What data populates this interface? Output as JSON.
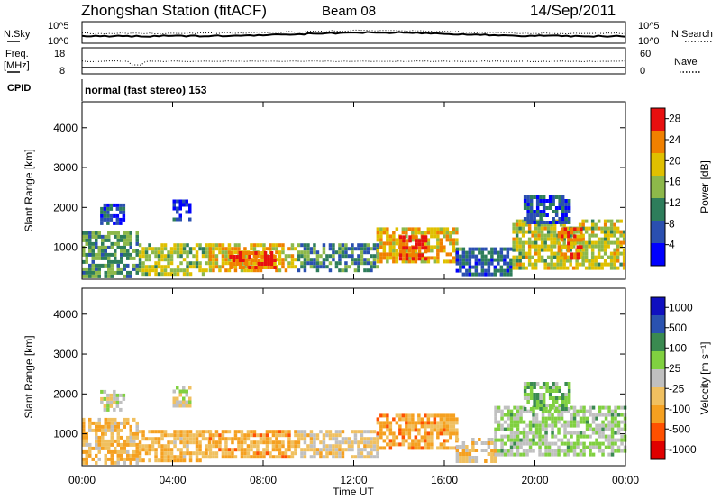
{
  "header": {
    "station": "Zhongshan Station (fitACF)",
    "beam": "Beam 08",
    "date": "14/Sep/2011"
  },
  "noise_panel": {
    "left_label": "N.Sky",
    "right_label": "N.Search",
    "left_ticks": [
      "10^5",
      "10^0"
    ],
    "right_ticks": [
      "10^5",
      "10^0"
    ]
  },
  "freq_panel": {
    "left_label_top": "Freq.",
    "left_label_bottom": "[MHz]",
    "right_label": "Nave",
    "left_ticks": [
      "18",
      "8"
    ],
    "right_ticks": [
      "60",
      "0"
    ]
  },
  "cpid": {
    "label": "CPID",
    "text": "normal (fast stereo) 153"
  },
  "chart_data": [
    {
      "type": "heatmap",
      "title": "",
      "ylabel": "Slant Range [km]",
      "ylim": [
        200,
        4650
      ],
      "y_ticks": [
        "1000",
        "2000",
        "3000",
        "4000"
      ],
      "x_ticks": [
        "00:00",
        "04:00",
        "08:00",
        "12:00",
        "16:00",
        "20:00",
        "00:00"
      ],
      "colorbar": {
        "label": "Power [dB]",
        "ticks": [
          "4",
          "8",
          "12",
          "16",
          "20",
          "24",
          "28"
        ],
        "range": [
          0,
          30
        ]
      },
      "regions": [
        {
          "t0": 0.0,
          "t1": 2.5,
          "r0": 300,
          "r1": 1400,
          "value": 12
        },
        {
          "t0": 0.8,
          "t1": 1.8,
          "r0": 1600,
          "r1": 2100,
          "value": 6
        },
        {
          "t0": 2.5,
          "t1": 5.6,
          "r0": 300,
          "r1": 1100,
          "value": 16
        },
        {
          "t0": 4.0,
          "t1": 4.8,
          "r0": 1700,
          "r1": 2200,
          "value": 5
        },
        {
          "t0": 5.6,
          "t1": 9.5,
          "r0": 400,
          "r1": 1100,
          "value": 20
        },
        {
          "t0": 6.5,
          "t1": 8.5,
          "r0": 500,
          "r1": 900,
          "value": 26
        },
        {
          "t0": 9.5,
          "t1": 13.0,
          "r0": 400,
          "r1": 1100,
          "value": 10
        },
        {
          "t0": 13.0,
          "t1": 16.5,
          "r0": 600,
          "r1": 1500,
          "value": 20
        },
        {
          "t0": 14.0,
          "t1": 15.2,
          "r0": 700,
          "r1": 1300,
          "value": 27
        },
        {
          "t0": 16.5,
          "t1": 19.0,
          "r0": 300,
          "r1": 1000,
          "value": 8
        },
        {
          "t0": 19.0,
          "t1": 24.0,
          "r0": 500,
          "r1": 1700,
          "value": 17
        },
        {
          "t0": 21.0,
          "t1": 22.0,
          "r0": 700,
          "r1": 1500,
          "value": 24
        },
        {
          "t0": 19.5,
          "t1": 21.5,
          "r0": 1600,
          "r1": 2300,
          "value": 7
        }
      ]
    },
    {
      "type": "heatmap",
      "title": "",
      "ylabel": "Slant Range [km]",
      "ylim": [
        200,
        4650
      ],
      "y_ticks": [
        "1000",
        "2000",
        "3000",
        "4000"
      ],
      "x_ticks": [
        "00:00",
        "04:00",
        "08:00",
        "12:00",
        "16:00",
        "20:00",
        "00:00"
      ],
      "xlabel": "Time UT",
      "colorbar": {
        "label": "Velocity [m s⁻¹]",
        "ticks": [
          "1000",
          "500",
          "100",
          "25",
          "-25",
          "-100",
          "-500",
          "-1000"
        ],
        "range": [
          -1100,
          1100
        ]
      },
      "regions": [
        {
          "t0": 0.0,
          "t1": 2.5,
          "r0": 300,
          "r1": 1400,
          "value": -300
        },
        {
          "t0": 0.8,
          "t1": 1.8,
          "r0": 1600,
          "r1": 2100,
          "value": 0
        },
        {
          "t0": 2.5,
          "t1": 5.6,
          "r0": 300,
          "r1": 1100,
          "value": -350
        },
        {
          "t0": 4.0,
          "t1": 4.8,
          "r0": 1700,
          "r1": 2200,
          "value": 0
        },
        {
          "t0": 5.6,
          "t1": 9.5,
          "r0": 400,
          "r1": 1100,
          "value": -400
        },
        {
          "t0": 9.5,
          "t1": 13.0,
          "r0": 400,
          "r1": 1100,
          "value": -150
        },
        {
          "t0": 13.0,
          "t1": 16.5,
          "r0": 600,
          "r1": 1500,
          "value": -450
        },
        {
          "t0": 16.5,
          "t1": 18.2,
          "r0": 300,
          "r1": 900,
          "value": -200
        },
        {
          "t0": 18.2,
          "t1": 24.0,
          "r0": 500,
          "r1": 1700,
          "value": 150
        },
        {
          "t0": 19.5,
          "t1": 21.5,
          "r0": 1600,
          "r1": 2300,
          "value": 300
        }
      ]
    }
  ]
}
